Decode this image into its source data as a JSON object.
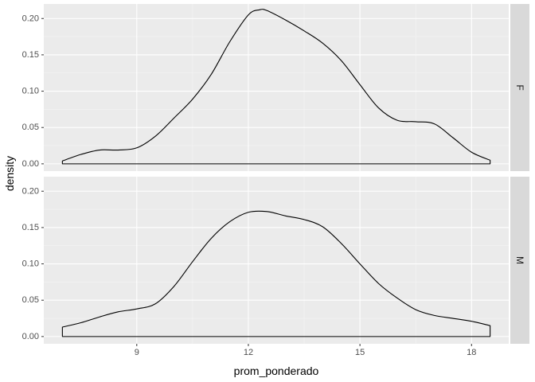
{
  "chart_data": {
    "type": "area",
    "title": "",
    "xlabel": "prom_ponderado",
    "ylabel": "density",
    "xlim": [
      6.5,
      19.0
    ],
    "ylim": [
      -0.01,
      0.22
    ],
    "x_ticks": [
      9,
      12,
      15,
      18
    ],
    "x_tick_labels": [
      "9",
      "12",
      "15",
      "18"
    ],
    "y_ticks": [
      0.0,
      0.05,
      0.1,
      0.15,
      0.2
    ],
    "y_tick_labels": [
      "0.00",
      "0.05",
      "0.10",
      "0.15",
      "0.20"
    ],
    "grid": true,
    "legend": "none",
    "facets": [
      {
        "label": "F",
        "series": [
          {
            "x": [
              7.0,
              7.5,
              8.0,
              8.5,
              9.0,
              9.5,
              10.0,
              10.5,
              11.0,
              11.5,
              12.0,
              12.3,
              12.5,
              13.0,
              13.5,
              14.0,
              14.5,
              15.0,
              15.5,
              16.0,
              16.5,
              17.0,
              17.5,
              18.0,
              18.5
            ],
            "y": [
              0.004,
              0.013,
              0.019,
              0.019,
              0.022,
              0.038,
              0.063,
              0.089,
              0.123,
              0.168,
              0.205,
              0.212,
              0.211,
              0.198,
              0.183,
              0.166,
              0.142,
              0.109,
              0.077,
              0.06,
              0.058,
              0.055,
              0.036,
              0.016,
              0.005
            ]
          }
        ]
      },
      {
        "label": "M",
        "series": [
          {
            "x": [
              7.0,
              7.5,
              8.0,
              8.5,
              9.0,
              9.5,
              10.0,
              10.5,
              11.0,
              11.5,
              12.0,
              12.5,
              13.0,
              13.5,
              14.0,
              14.5,
              15.0,
              15.5,
              16.0,
              16.5,
              17.0,
              17.5,
              18.0,
              18.5
            ],
            "y": [
              0.013,
              0.019,
              0.027,
              0.034,
              0.038,
              0.045,
              0.069,
              0.103,
              0.135,
              0.158,
              0.171,
              0.172,
              0.166,
              0.161,
              0.151,
              0.128,
              0.1,
              0.073,
              0.053,
              0.037,
              0.029,
              0.025,
              0.021,
              0.015
            ]
          }
        ]
      }
    ],
    "colors": {
      "panel_background": "#ebebeb",
      "grid_major": "#ffffff",
      "strip_background": "#d9d9d9",
      "line": "#000000"
    }
  }
}
